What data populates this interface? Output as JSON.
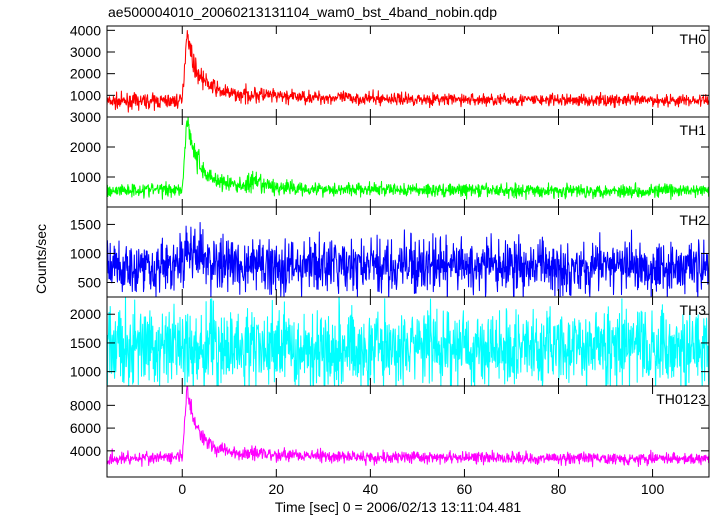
{
  "title": "ae500004010_20060213131104_wam0_bst_4band_nobin.qdp",
  "chart_data": {
    "type": "line",
    "title": "ae500004010_20060213131104_wam0_bst_4band_nobin.qdp",
    "xlabel": "Time [sec] 0 = 2006/02/13 13:11:04.481",
    "ylabel": "Counts/sec",
    "xlim": [
      -16,
      112
    ],
    "x_ticks": [
      0,
      20,
      40,
      60,
      80,
      100
    ],
    "x_tick_labels": [
      "0",
      "20",
      "40",
      "60",
      "80",
      "100"
    ],
    "grid": false,
    "legend": "none",
    "panels": [
      {
        "name": "TH0",
        "color": "#ff0000",
        "ylim": [
          0,
          4200
        ],
        "y_ticks": [
          1000,
          2000,
          3000,
          4000
        ],
        "y_tick_labels": [
          "1000",
          "2000",
          "3000",
          "4000"
        ],
        "x": [
          -16,
          0,
          1,
          2,
          3,
          5,
          8,
          12,
          15,
          20,
          30,
          40,
          60,
          80,
          100,
          112
        ],
        "y": [
          700,
          750,
          4000,
          2800,
          2100,
          1600,
          1200,
          1000,
          1050,
          950,
          900,
          850,
          800,
          780,
          770,
          760
        ],
        "spread": [
          300,
          300,
          300,
          450,
          400,
          350,
          300,
          280,
          380,
          280,
          260,
          260,
          250,
          250,
          250,
          250
        ]
      },
      {
        "name": "TH1",
        "color": "#00ff00",
        "ylim": [
          0,
          3000
        ],
        "y_ticks": [
          1000,
          2000,
          3000
        ],
        "y_tick_labels": [
          "1000",
          "2000",
          "3000"
        ],
        "x": [
          -16,
          0,
          1,
          2,
          3,
          5,
          8,
          12,
          15,
          20,
          30,
          40,
          60,
          80,
          100,
          112
        ],
        "y": [
          550,
          600,
          2950,
          2200,
          1600,
          1100,
          850,
          700,
          800,
          650,
          600,
          580,
          560,
          540,
          540,
          540
        ],
        "spread": [
          200,
          220,
          200,
          450,
          380,
          320,
          260,
          230,
          330,
          220,
          200,
          200,
          200,
          200,
          200,
          200
        ]
      },
      {
        "name": "TH2",
        "color": "#0000ff",
        "ylim": [
          250,
          1800
        ],
        "y_ticks": [
          500,
          1000,
          1500
        ],
        "y_tick_labels": [
          "500",
          "1000",
          "1500"
        ],
        "x": [
          -16,
          0,
          1,
          2,
          4,
          6,
          10,
          20,
          40,
          60,
          80,
          100,
          112
        ],
        "y": [
          780,
          790,
          1100,
          1050,
          920,
          850,
          800,
          790,
          780,
          780,
          780,
          780,
          780
        ],
        "spread": [
          420,
          420,
          460,
          450,
          430,
          420,
          420,
          420,
          420,
          420,
          420,
          420,
          420
        ]
      },
      {
        "name": "TH3",
        "color": "#00ffff",
        "ylim": [
          750,
          2300
        ],
        "y_ticks": [
          1000,
          1500,
          2000
        ],
        "y_tick_labels": [
          "1000",
          "1500",
          "2000"
        ],
        "x": [
          -16,
          0,
          20,
          40,
          60,
          80,
          100,
          112
        ],
        "y": [
          1420,
          1420,
          1420,
          1420,
          1420,
          1420,
          1420,
          1420
        ],
        "spread": [
          620,
          620,
          620,
          620,
          620,
          620,
          620,
          620
        ]
      },
      {
        "name": "TH0123",
        "color": "#ff00ff",
        "ylim": [
          1700,
          9700
        ],
        "y_ticks": [
          4000,
          6000,
          8000
        ],
        "y_tick_labels": [
          "4000",
          "6000",
          "8000"
        ],
        "x": [
          -16,
          0,
          1,
          2,
          3,
          5,
          8,
          12,
          15,
          20,
          30,
          40,
          60,
          80,
          100,
          112
        ],
        "y": [
          3300,
          3450,
          9500,
          7500,
          6000,
          4900,
          4100,
          3750,
          3900,
          3650,
          3550,
          3450,
          3400,
          3350,
          3300,
          3300
        ],
        "spread": [
          500,
          500,
          600,
          700,
          650,
          600,
          550,
          500,
          650,
          500,
          480,
          480,
          460,
          460,
          460,
          460
        ]
      }
    ]
  }
}
